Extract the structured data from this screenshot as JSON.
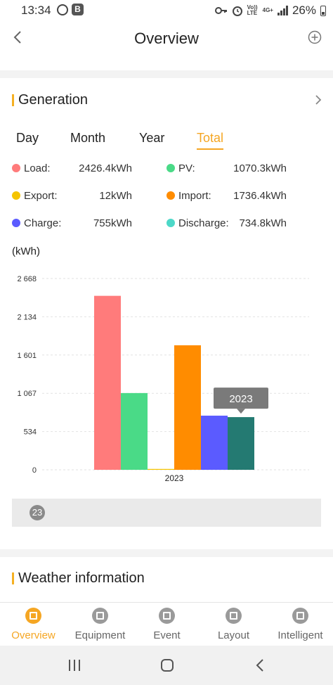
{
  "status_bar": {
    "time": "13:34",
    "app_icons": [
      "whatsapp-icon",
      "b-app-icon"
    ],
    "b_app_letter": "B",
    "indicators": [
      "key-icon",
      "alarm-icon",
      "volte-icon",
      "4g-icon",
      "signal-icon"
    ],
    "volte_text": "Vo)) LTE",
    "network_text": "4G+",
    "battery": "26%"
  },
  "header": {
    "title": "Overview",
    "back_icon": "chevron-left-icon",
    "add_icon": "plus-circle-icon"
  },
  "generation": {
    "title": "Generation",
    "accent_color": "#f5b022",
    "tabs": [
      {
        "label": "Day",
        "active": false
      },
      {
        "label": "Month",
        "active": false
      },
      {
        "label": "Year",
        "active": false
      },
      {
        "label": "Total",
        "active": true
      }
    ],
    "legend": [
      {
        "label": "Load:",
        "value": "2426.4kWh",
        "color": "#ff7b7b"
      },
      {
        "label": "PV:",
        "value": "1070.3kWh",
        "color": "#4ada87"
      },
      {
        "label": "Export:",
        "value": "12kWh",
        "color": "#f5c400"
      },
      {
        "label": "Import:",
        "value": "1736.4kWh",
        "color": "#ff8c00"
      },
      {
        "label": "Charge:",
        "value": "755kWh",
        "color": "#5b5bff"
      },
      {
        "label": "Discharge:",
        "value": "734.8kWh",
        "color": "#4dd8c8"
      }
    ],
    "unit_label": "(kWh)",
    "scroller_label": "23"
  },
  "chart_data": {
    "type": "bar",
    "categories": [
      "2023"
    ],
    "yticks": [
      "2 668",
      "2 134",
      "1 601",
      "1 067",
      "534",
      "0"
    ],
    "ylim": [
      0,
      2668
    ],
    "grid": true,
    "series": [
      {
        "name": "Load",
        "values": [
          2426.4
        ],
        "color": "#ff7b7b"
      },
      {
        "name": "PV",
        "values": [
          1070.3
        ],
        "color": "#4ada87"
      },
      {
        "name": "Export",
        "values": [
          12
        ],
        "color": "#f5c400"
      },
      {
        "name": "Import",
        "values": [
          1736.4
        ],
        "color": "#ff8c00"
      },
      {
        "name": "Charge",
        "values": [
          755
        ],
        "color": "#5b5bff"
      },
      {
        "name": "Discharge",
        "values": [
          734.8
        ],
        "color": "#247a72"
      }
    ],
    "tooltip": "2023"
  },
  "weather": {
    "title": "Weather information"
  },
  "bottom_nav": {
    "items": [
      {
        "label": "Overview",
        "icon": "overview-icon",
        "active": true
      },
      {
        "label": "Equipment",
        "icon": "equipment-icon",
        "active": false
      },
      {
        "label": "Event",
        "icon": "event-icon",
        "active": false
      },
      {
        "label": "Layout",
        "icon": "layout-icon",
        "active": false
      },
      {
        "label": "Intelligent",
        "icon": "intelligent-icon",
        "active": false
      }
    ],
    "active_color": "#f5a623"
  },
  "system_nav": {
    "buttons": [
      "recent-apps-icon",
      "home-icon",
      "back-icon"
    ]
  }
}
